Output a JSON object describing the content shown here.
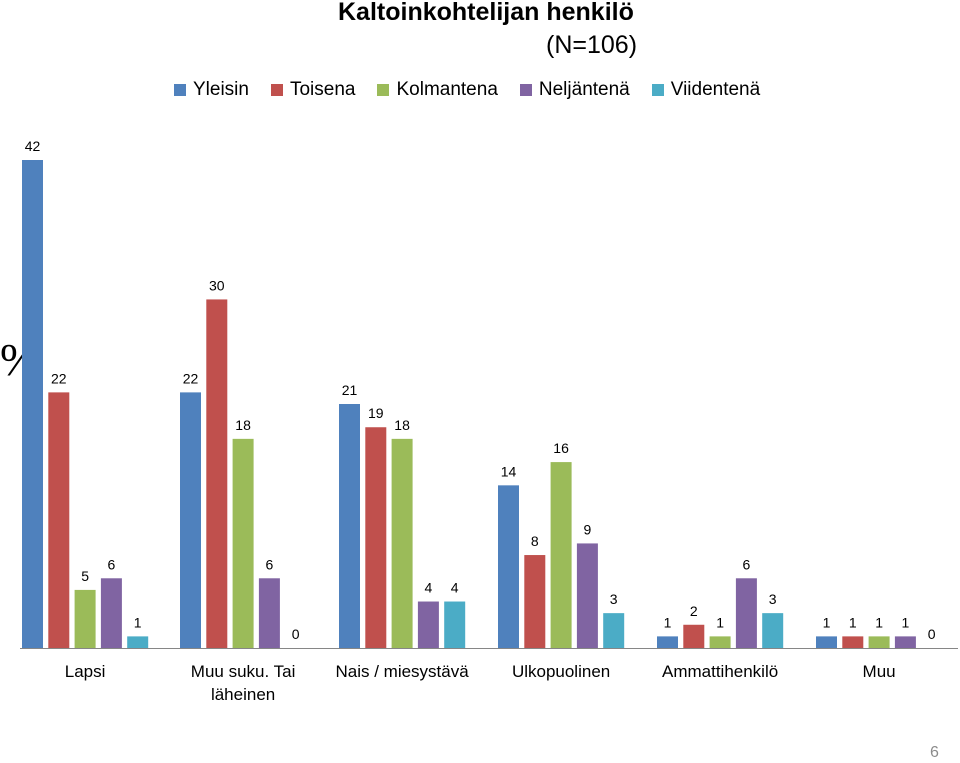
{
  "title": "Kaltoinkohtelijan henkilö",
  "subtitle": "(N=106)",
  "ylabel": "%",
  "page_number": "6",
  "chart_data": {
    "type": "bar",
    "title": "Kaltoinkohtelijan henkilö",
    "subtitle": "(N=106)",
    "ylabel": "%",
    "xlabel": "",
    "legend_position": "top",
    "grid": false,
    "ylim": [
      0,
      42
    ],
    "categories": [
      "Lapsi",
      "Muu suku. Tai läheinen",
      "Nais / miesystävä",
      "Ulkopuolinen",
      "Ammattihenkilö",
      "Muu"
    ],
    "category_lines": [
      [
        "Lapsi"
      ],
      [
        "Muu suku. Tai",
        "läheinen"
      ],
      [
        "Nais / miesystävä"
      ],
      [
        "Ulkopuolinen"
      ],
      [
        "Ammattihenkilö"
      ],
      [
        "Muu"
      ]
    ],
    "series": [
      {
        "name": "Yleisin",
        "color": "#4f81bd",
        "values": [
          42,
          22,
          21,
          14,
          1,
          1
        ]
      },
      {
        "name": "Toisena",
        "color": "#c0504d",
        "values": [
          22,
          30,
          19,
          8,
          2,
          1
        ]
      },
      {
        "name": "Kolmantena",
        "color": "#9bbb59",
        "values": [
          5,
          18,
          18,
          16,
          1,
          1
        ]
      },
      {
        "name": "Neljäntenä",
        "color": "#8064a2",
        "values": [
          6,
          6,
          4,
          9,
          6,
          1
        ]
      },
      {
        "name": "Viidentenä",
        "color": "#4bacc6",
        "values": [
          1,
          0,
          4,
          3,
          3,
          0
        ]
      }
    ]
  }
}
